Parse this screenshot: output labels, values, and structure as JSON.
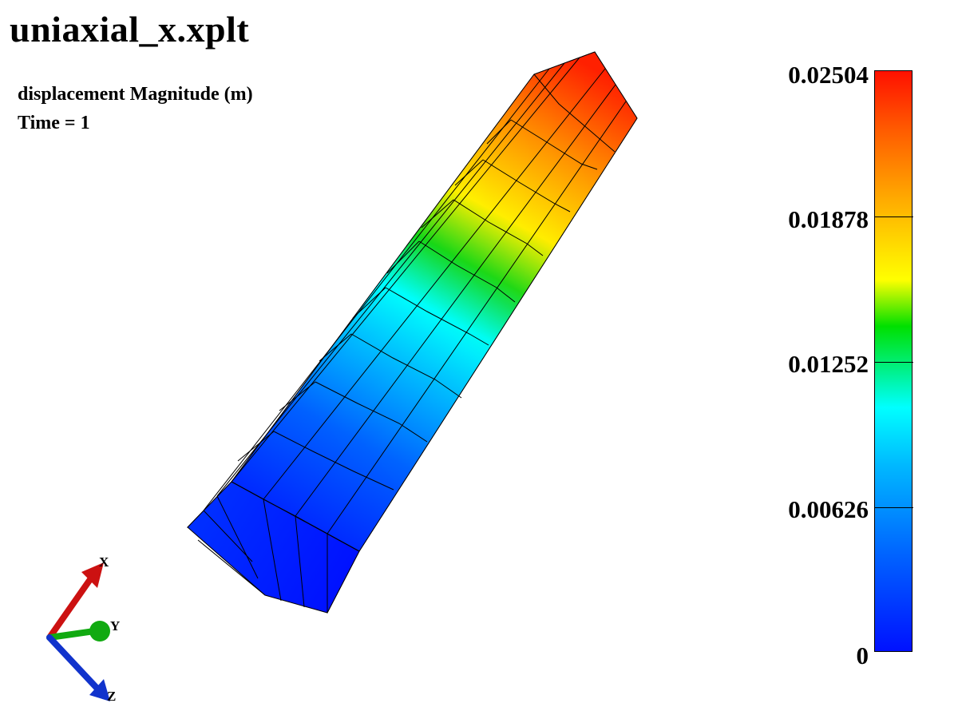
{
  "viewer": {
    "title": "uniaxial_x.xplt",
    "field_label": "displacement Magnitude (m)",
    "time_label": "Time = 1"
  },
  "legend": {
    "ticks": [
      "0.02504",
      "0.01878",
      "0.01252",
      "0.00626",
      "0"
    ],
    "colors": {
      "max": "#ff1000",
      "orange": "#ff9900",
      "yellow": "#ffff00",
      "green": "#00e000",
      "cyan": "#00ffff",
      "light_blue": "#00a0ff",
      "min": "#0011ff"
    }
  },
  "triad": {
    "x_label": "X",
    "y_label": "Y",
    "z_label": "Z",
    "x_color": "#cc1111",
    "y_color": "#11aa11",
    "z_color": "#1133cc"
  }
}
